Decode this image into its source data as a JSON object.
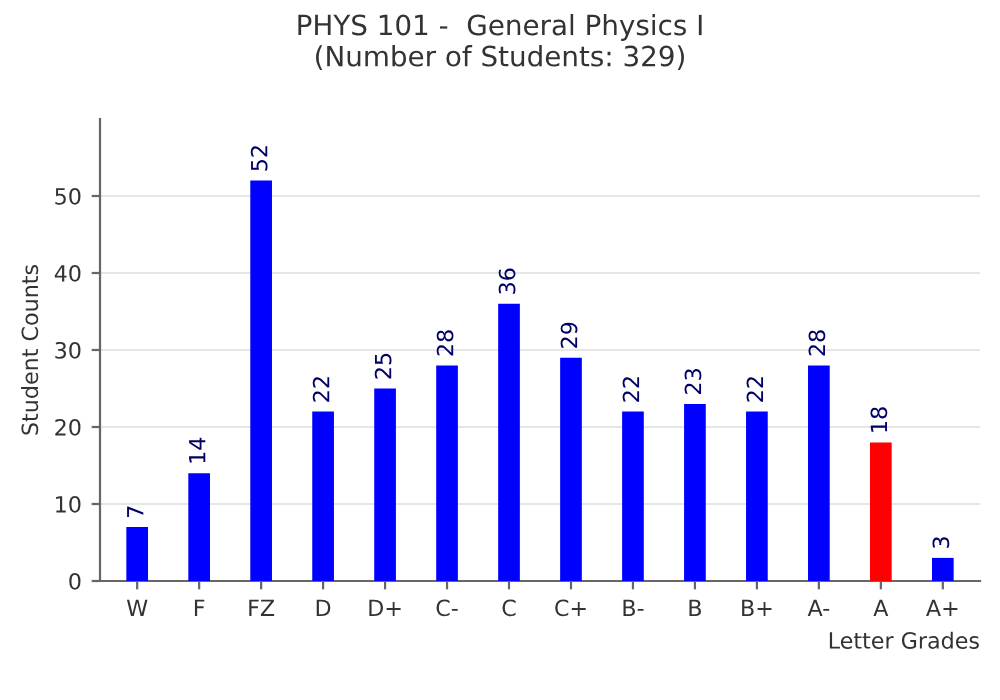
{
  "chart_data": {
    "type": "bar",
    "title": "PHYS 101 -  General Physics I\n(Number of Students: 329)",
    "xlabel": "Letter Grades",
    "ylabel": "Student Counts",
    "categories": [
      "W",
      "F",
      "FZ",
      "D",
      "D+",
      "C-",
      "C",
      "C+",
      "B-",
      "B",
      "B+",
      "A-",
      "A",
      "A+"
    ],
    "values": [
      7,
      14,
      52,
      22,
      25,
      28,
      36,
      29,
      22,
      23,
      22,
      28,
      18,
      3
    ],
    "colors": [
      "#0000ff",
      "#0000ff",
      "#0000ff",
      "#0000ff",
      "#0000ff",
      "#0000ff",
      "#0000ff",
      "#0000ff",
      "#0000ff",
      "#0000ff",
      "#0000ff",
      "#0000ff",
      "#ff0000",
      "#0000ff"
    ],
    "ylim": [
      0,
      60
    ],
    "yticks": [
      0,
      10,
      20,
      30,
      40,
      50
    ],
    "grid": "y",
    "data_labels": true,
    "legend": false
  }
}
